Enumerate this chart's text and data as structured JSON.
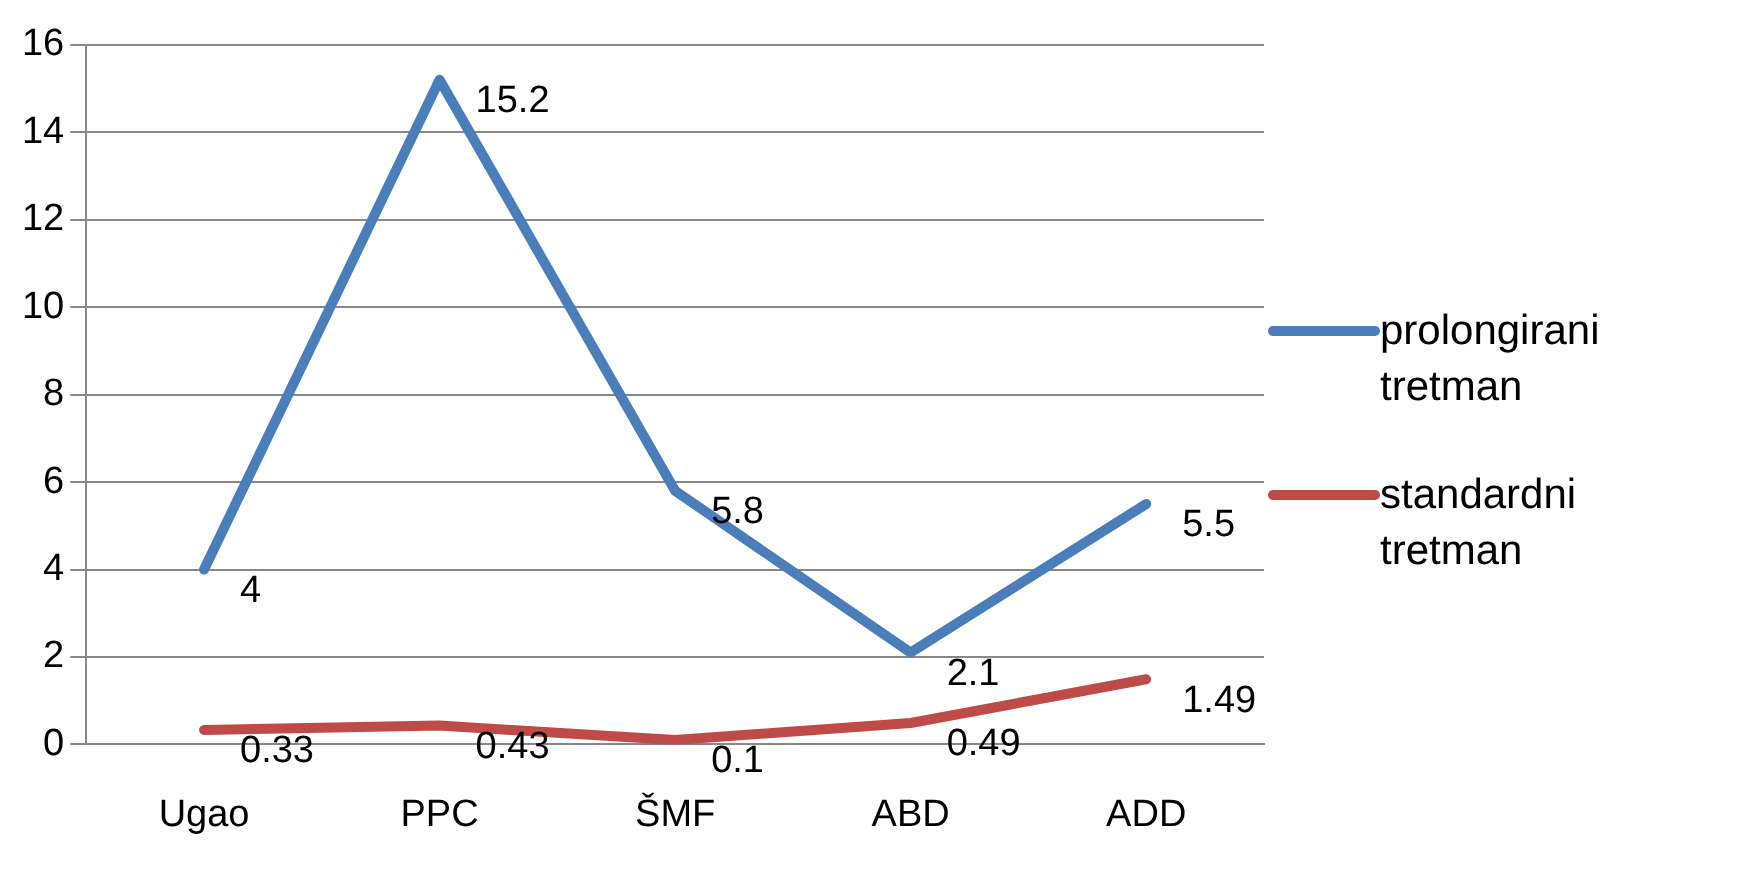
{
  "chart_data": {
    "type": "line",
    "categories": [
      "Ugao",
      "PPC",
      "ŠMF",
      "ABD",
      "ADD"
    ],
    "series": [
      {
        "name": "prolongirani tretman",
        "color": "#4a7ebb",
        "values": [
          4,
          15.2,
          5.8,
          2.1,
          5.5
        ]
      },
      {
        "name": "standardni tretman",
        "color": "#be4b48",
        "values": [
          0.33,
          0.43,
          0.1,
          0.49,
          1.49
        ]
      }
    ],
    "ylim": [
      0,
      16
    ],
    "yticks": [
      0,
      2,
      4,
      6,
      8,
      10,
      12,
      14,
      16
    ],
    "grid": "y",
    "legend": "right",
    "marker": "none",
    "line_style": "solid",
    "data_labels": true
  }
}
